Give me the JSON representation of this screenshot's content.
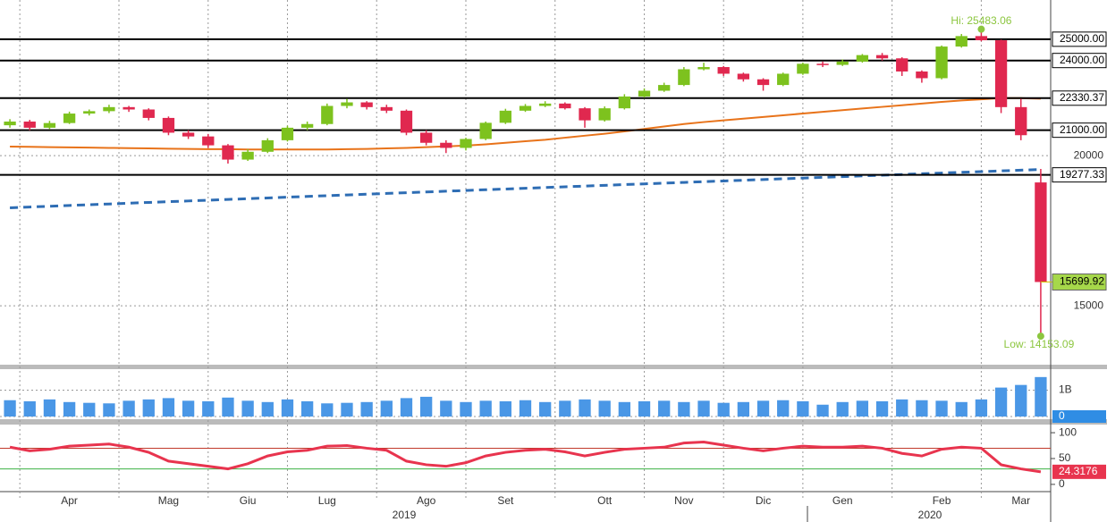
{
  "chart_data": [
    {
      "type": "candlestick",
      "log_scale": true,
      "grid": true,
      "up_color": "#7dc21e",
      "down_color": "#e0284f",
      "ylim": [
        13400,
        26950
      ],
      "yticks": [
        15000,
        20000
      ],
      "categories": [
        null,
        null,
        null,
        "Apr",
        null,
        null,
        null,
        null,
        "Mag",
        null,
        null,
        null,
        "Giu",
        null,
        null,
        null,
        "Lug",
        null,
        null,
        null,
        null,
        "Ago",
        null,
        null,
        null,
        "Set",
        null,
        null,
        null,
        null,
        "Ott",
        null,
        null,
        null,
        "Nov",
        null,
        null,
        null,
        "Dic",
        null,
        null,
        null,
        "Gen",
        null,
        null,
        null,
        null,
        "Feb",
        null,
        null,
        null,
        "Mar",
        null
      ],
      "years": [
        "2019",
        "2020"
      ],
      "open": [
        21200,
        21350,
        21100,
        21290,
        21680,
        21780,
        21950,
        21850,
        21500,
        20900,
        20750,
        20400,
        19850,
        20150,
        20600,
        21100,
        21250,
        22000,
        22150,
        21950,
        21800,
        20900,
        20500,
        20300,
        20650,
        21300,
        21800,
        22000,
        22100,
        21900,
        21400,
        21900,
        22400,
        22650,
        22900,
        23600,
        23700,
        23400,
        23150,
        22900,
        23400,
        23850,
        23800,
        23950,
        24250,
        24100,
        23500,
        23200,
        24650,
        25150,
        24950,
        21950,
        19000
      ],
      "high": [
        21450,
        21420,
        21380,
        21760,
        21850,
        22050,
        22000,
        21900,
        21560,
        21000,
        20850,
        20450,
        20250,
        20680,
        21180,
        21350,
        22100,
        22300,
        22200,
        22050,
        21850,
        21000,
        20600,
        20700,
        21350,
        21880,
        22080,
        22200,
        22150,
        21950,
        21980,
        22500,
        22750,
        23000,
        23700,
        23900,
        23750,
        23450,
        23200,
        23450,
        23900,
        23950,
        24050,
        24300,
        24350,
        24150,
        23550,
        24700,
        25250,
        25483.06,
        24980,
        22300,
        19500
      ],
      "low": [
        21100,
        21000,
        21050,
        21250,
        21600,
        21700,
        21750,
        21400,
        20800,
        20650,
        20300,
        19700,
        19800,
        20100,
        20550,
        21000,
        21200,
        21900,
        21850,
        21700,
        20800,
        20400,
        20100,
        20200,
        20600,
        21250,
        21750,
        21950,
        21850,
        21100,
        21350,
        21850,
        22350,
        22600,
        22850,
        23550,
        23300,
        23050,
        22650,
        22850,
        23350,
        23700,
        23750,
        23900,
        24000,
        23300,
        23000,
        23150,
        24600,
        24900,
        21700,
        20600,
        14153.09
      ],
      "close": [
        21350,
        21100,
        21290,
        21680,
        21780,
        21950,
        21850,
        21500,
        20900,
        20750,
        20400,
        19850,
        20150,
        20600,
        21100,
        21250,
        22000,
        22150,
        21950,
        21800,
        20900,
        20500,
        20300,
        20650,
        21300,
        21800,
        22000,
        22100,
        21900,
        21400,
        21900,
        22400,
        22650,
        22900,
        23600,
        23700,
        23400,
        23150,
        22900,
        23400,
        23850,
        23800,
        23950,
        24250,
        24100,
        23500,
        23200,
        24650,
        25150,
        24950,
        21950,
        20800,
        15699.92
      ],
      "series": [
        {
          "color": "#e8731a",
          "dashed": false,
          "values": [
            20350,
            20340,
            20330,
            20320,
            20310,
            20300,
            20290,
            20280,
            20270,
            20260,
            20250,
            20250,
            20240,
            20240,
            20240,
            20240,
            20240,
            20250,
            20260,
            20280,
            20300,
            20330,
            20360,
            20390,
            20440,
            20500,
            20560,
            20620,
            20700,
            20780,
            20860,
            20950,
            21050,
            21150,
            21250,
            21330,
            21400,
            21470,
            21540,
            21610,
            21680,
            21750,
            21820,
            21890,
            21960,
            22030,
            22100,
            22170,
            22230,
            22280,
            22330,
            22330,
            22310
          ]
        },
        {
          "color": "#2e6db4",
          "dashed": true,
          "values": [
            18100,
            18126,
            18153,
            18180,
            18206,
            18232,
            18259,
            18286,
            18312,
            18338,
            18365,
            18392,
            18418,
            18444,
            18471,
            18498,
            18524,
            18550,
            18577,
            18604,
            18630,
            18656,
            18683,
            18710,
            18736,
            18762,
            18789,
            18816,
            18842,
            18868,
            18895,
            18922,
            18948,
            18974,
            19001,
            19028,
            19054,
            19080,
            19107,
            19134,
            19160,
            19186,
            19213,
            19240,
            19266,
            19292,
            19319,
            19346,
            19372,
            19398,
            19425,
            19452,
            19478
          ]
        }
      ],
      "levels": [
        {
          "value": 25000,
          "label": "25000.00"
        },
        {
          "value": 24000,
          "label": "24000.00"
        },
        {
          "value": 22330.37,
          "label": "22330.37"
        },
        {
          "value": 21000,
          "label": "21000.00"
        },
        {
          "value": 19277.33,
          "label": "19277.33"
        }
      ],
      "hi_label": "Hi: 25483.06",
      "low_label": "Low: 14153.09",
      "annotation_color": "#8cc63f",
      "last_color": "#a6d84a"
    },
    {
      "type": "bar",
      "color": "#4a97e6",
      "ylim": [
        0,
        1800000000
      ],
      "yticks": [
        0,
        {
          "value": 1000000000,
          "label": "1B"
        }
      ],
      "values": [
        620000000,
        580000000,
        650000000,
        550000000,
        520000000,
        500000000,
        600000000,
        650000000,
        700000000,
        600000000,
        580000000,
        720000000,
        600000000,
        550000000,
        650000000,
        580000000,
        500000000,
        520000000,
        550000000,
        600000000,
        700000000,
        750000000,
        600000000,
        550000000,
        600000000,
        580000000,
        620000000,
        550000000,
        600000000,
        650000000,
        600000000,
        550000000,
        580000000,
        600000000,
        550000000,
        600000000,
        520000000,
        550000000,
        600000000,
        620000000,
        580000000,
        450000000,
        550000000,
        600000000,
        580000000,
        650000000,
        620000000,
        600000000,
        550000000,
        650000000,
        1100000000,
        1200000000,
        1500000000
      ]
    },
    {
      "type": "line",
      "color": "#e8344e",
      "ylim": [
        -14,
        114
      ],
      "yticks": [
        0,
        50,
        100
      ],
      "hlines": [
        {
          "value": 70,
          "color": "#c0392b"
        },
        {
          "value": 30,
          "color": "#3cb043"
        }
      ],
      "values": [
        72,
        65,
        68,
        74,
        76,
        78,
        72,
        62,
        45,
        40,
        35,
        30,
        40,
        55,
        63,
        66,
        74,
        75,
        70,
        66,
        45,
        38,
        35,
        42,
        55,
        62,
        66,
        68,
        63,
        55,
        62,
        68,
        70,
        72,
        80,
        82,
        76,
        70,
        65,
        70,
        74,
        72,
        72,
        74,
        70,
        60,
        55,
        68,
        72,
        70,
        38,
        30,
        24.3176
      ]
    }
  ]
}
